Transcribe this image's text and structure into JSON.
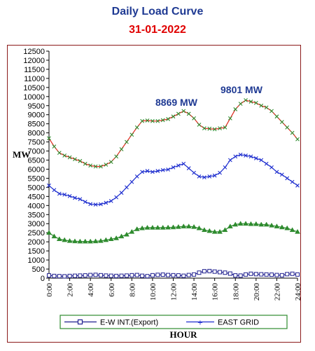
{
  "header": {
    "title": "Daily Load Curve",
    "date": "31-01-2022"
  },
  "chart_data": {
    "type": "line",
    "xlabel": "HOUR",
    "ylabel": "MW",
    "ylim": [
      0,
      12500
    ],
    "yticks": [
      0,
      500,
      1000,
      1500,
      2000,
      2500,
      3000,
      3500,
      4000,
      4500,
      5000,
      5500,
      6000,
      6500,
      7000,
      7500,
      8000,
      8500,
      9000,
      9500,
      10000,
      10500,
      11000,
      11500,
      12000,
      12500
    ],
    "xlim": [
      0,
      24
    ],
    "xticks": [
      "0:00",
      "2:00",
      "4:00",
      "6:00",
      "8:00",
      "10:00",
      "12:00",
      "14:00",
      "16:00",
      "18:00",
      "20:00",
      "22:00",
      "24:00"
    ],
    "grid": false,
    "legend_position": "bottom",
    "x": [
      0,
      0.5,
      1,
      1.5,
      2,
      2.5,
      3,
      3.5,
      4,
      4.5,
      5,
      5.5,
      6,
      6.5,
      7,
      7.5,
      8,
      8.5,
      9,
      9.5,
      10,
      10.5,
      11,
      11.5,
      12,
      12.5,
      13,
      13.5,
      14,
      14.5,
      15,
      15.5,
      16,
      16.5,
      17,
      17.5,
      18,
      18.5,
      19,
      19.5,
      20,
      20.5,
      21,
      21.5,
      22,
      22.5,
      23,
      23.5,
      24
    ],
    "series": [
      {
        "name": "E-W INT.(Export)",
        "color": "#1f1f8f",
        "marker": "square",
        "values": [
          150,
          120,
          110,
          100,
          120,
          130,
          140,
          150,
          170,
          180,
          160,
          140,
          130,
          120,
          130,
          140,
          160,
          170,
          130,
          110,
          160,
          180,
          190,
          170,
          160,
          150,
          130,
          170,
          200,
          300,
          380,
          390,
          360,
          330,
          300,
          250,
          150,
          140,
          200,
          240,
          220,
          210,
          200,
          190,
          170,
          160,
          220,
          240,
          200
        ]
      },
      {
        "name": "EAST GRID",
        "color": "#1f2fcf",
        "marker": "cross",
        "values": [
          5100,
          4850,
          4650,
          4600,
          4520,
          4420,
          4350,
          4200,
          4080,
          4050,
          4070,
          4150,
          4250,
          4450,
          4700,
          5000,
          5300,
          5600,
          5850,
          5900,
          5850,
          5900,
          5950,
          5980,
          6100,
          6200,
          6300,
          6050,
          5800,
          5600,
          5550,
          5600,
          5650,
          5800,
          6100,
          6500,
          6700,
          6800,
          6750,
          6700,
          6600,
          6500,
          6300,
          6100,
          5850,
          5700,
          5500,
          5300,
          5100
        ]
      },
      {
        "name": "",
        "color": "#2e8b2e",
        "marker": "triangle",
        "values": [
          2500,
          2300,
          2150,
          2100,
          2050,
          2030,
          2020,
          2020,
          2020,
          2030,
          2050,
          2100,
          2150,
          2200,
          2300,
          2400,
          2550,
          2700,
          2750,
          2780,
          2780,
          2780,
          2780,
          2790,
          2800,
          2820,
          2850,
          2850,
          2820,
          2750,
          2650,
          2600,
          2550,
          2550,
          2650,
          2850,
          2950,
          3000,
          3000,
          2980,
          2980,
          2950,
          2950,
          2900,
          2850,
          2800,
          2750,
          2650,
          2550
        ]
      },
      {
        "name": "",
        "color": "#e0281e",
        "marker": "cross",
        "values": [
          7700,
          7250,
          6900,
          6750,
          6650,
          6550,
          6450,
          6300,
          6200,
          6150,
          6150,
          6250,
          6400,
          6700,
          7100,
          7500,
          7900,
          8300,
          8650,
          8680,
          8650,
          8650,
          8700,
          8760,
          8900,
          9050,
          9200,
          9050,
          8800,
          8450,
          8250,
          8230,
          8200,
          8250,
          8300,
          8800,
          9300,
          9600,
          9800,
          9720,
          9650,
          9500,
          9400,
          9200,
          8900,
          8600,
          8300,
          8000,
          7650
        ]
      }
    ],
    "annotations": [
      {
        "text": "8869 MW"
      },
      {
        "text": "9801 MW"
      }
    ]
  }
}
